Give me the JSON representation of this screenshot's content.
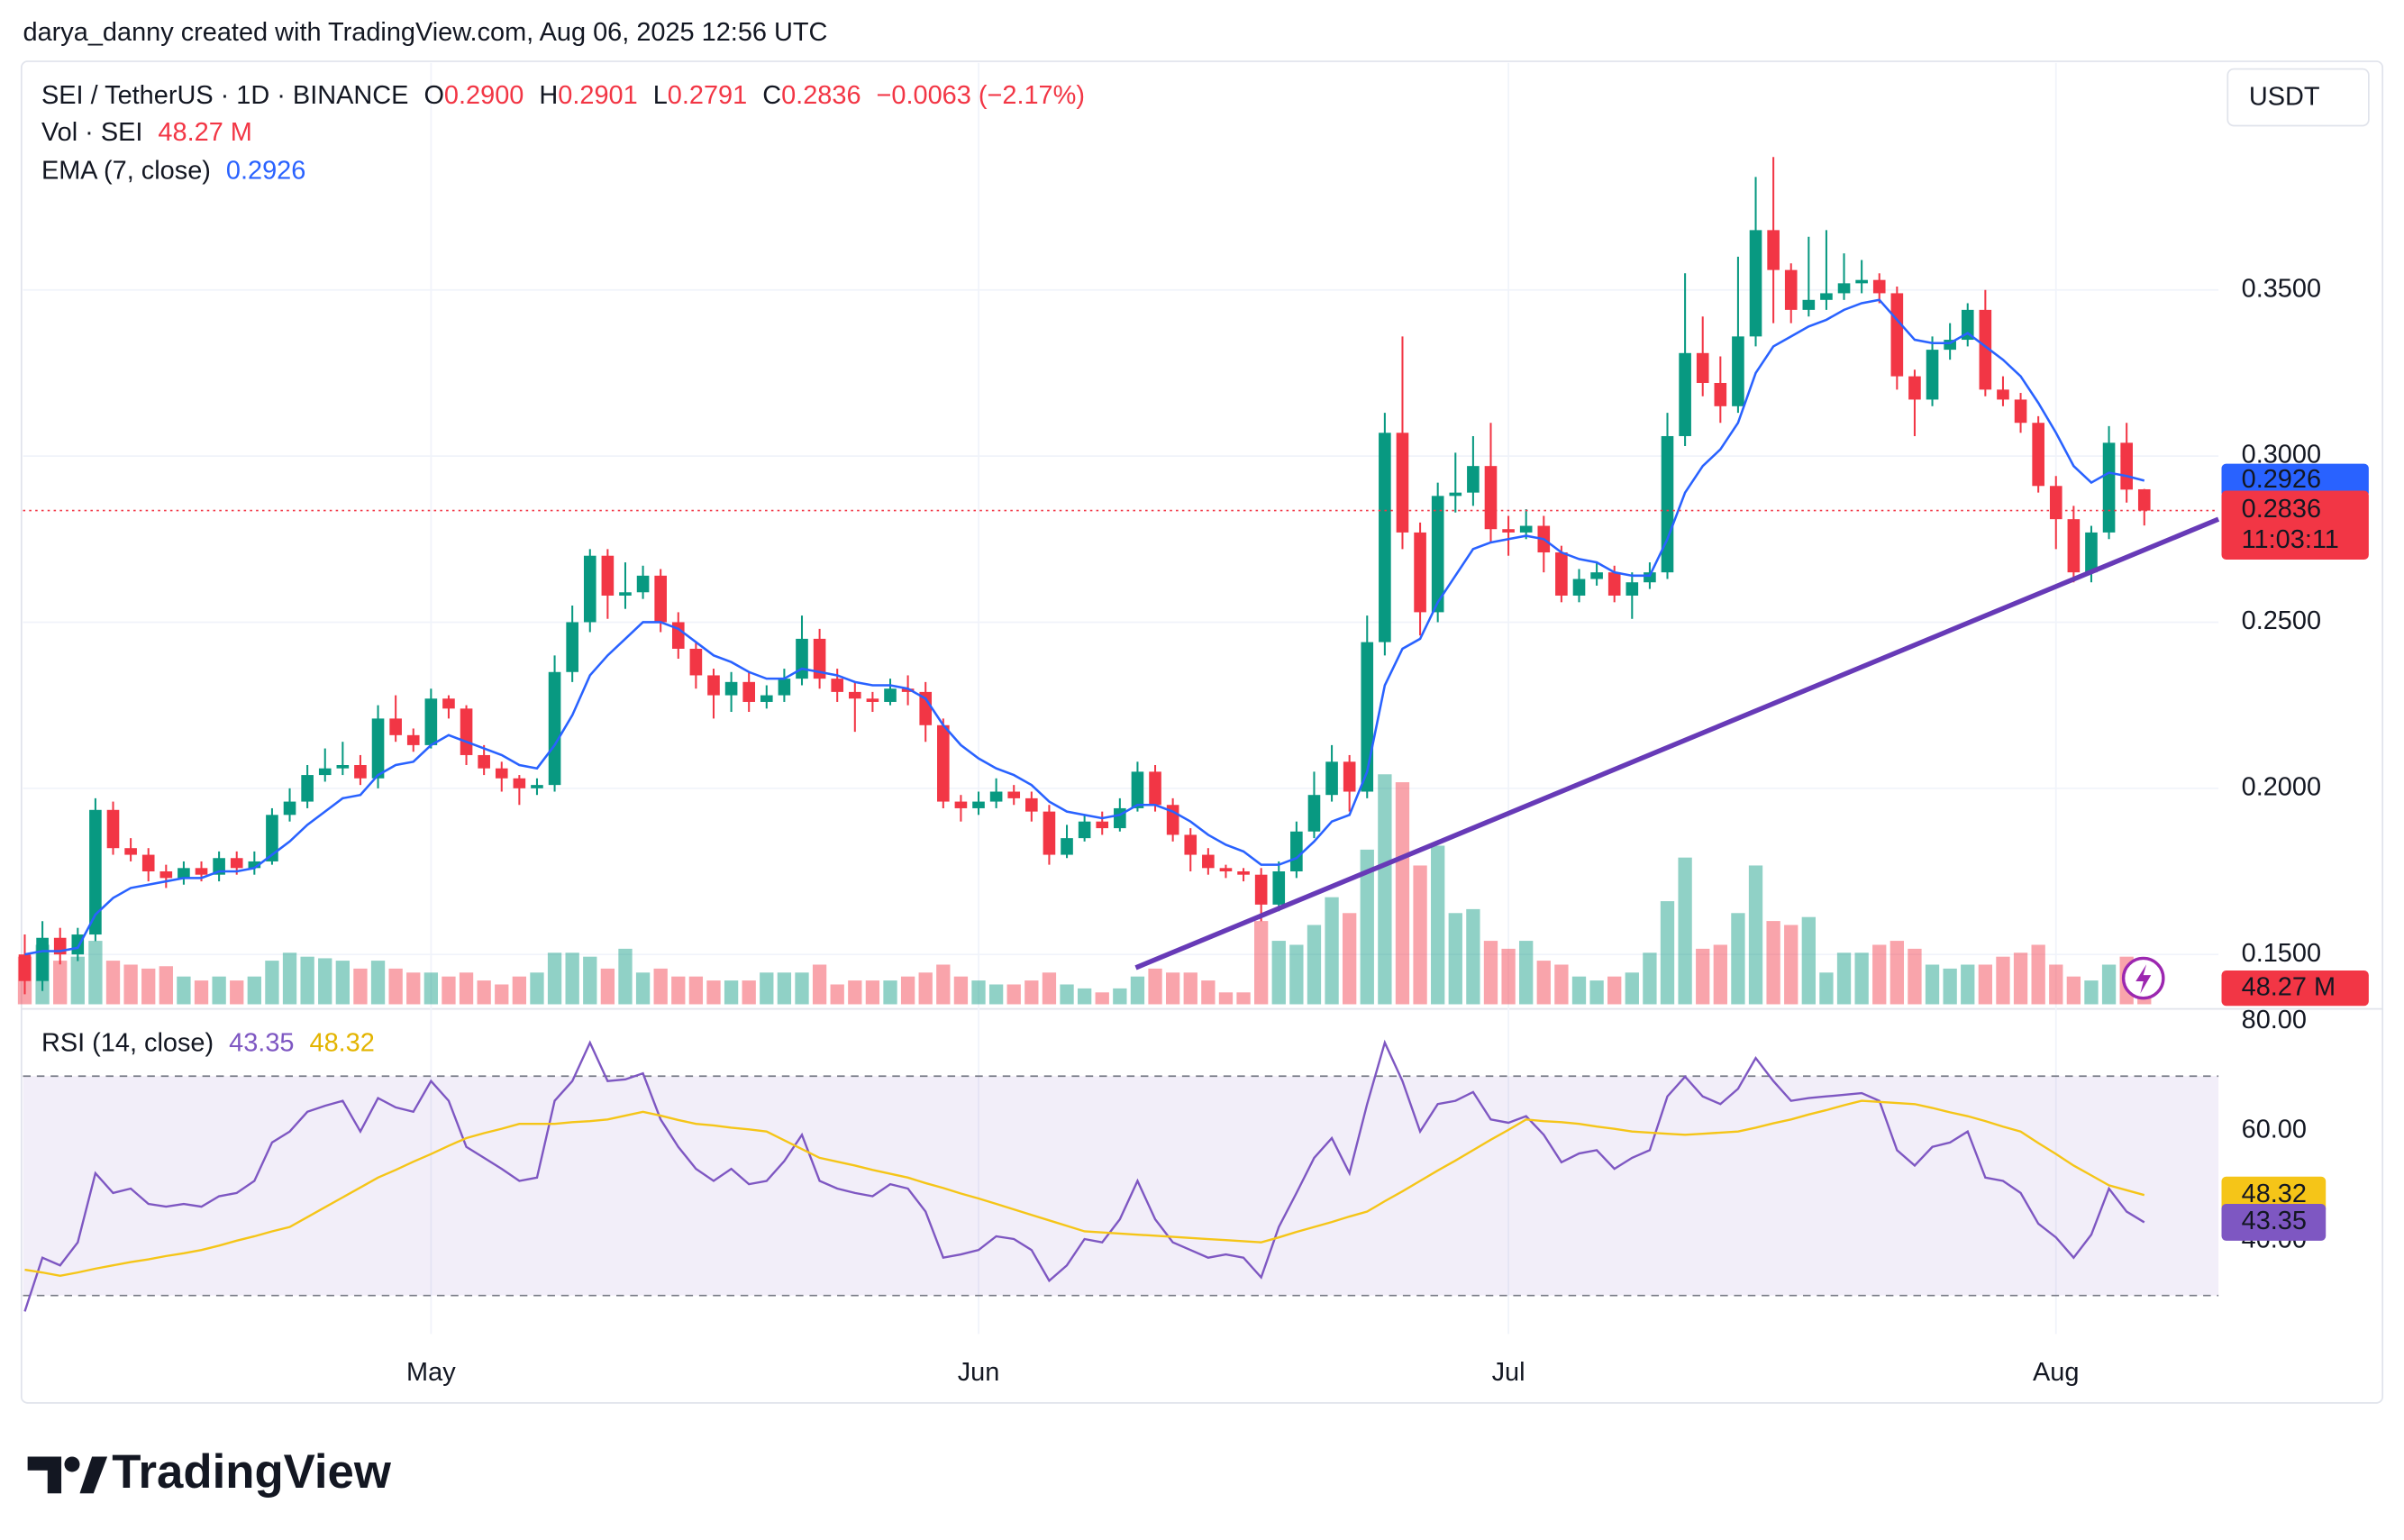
{
  "header": {
    "attribution": "darya_danny created with TradingView.com, Aug 06, 2025 12:56 UTC",
    "logo": "TradingView"
  },
  "chart_data": [
    {
      "type": "candlestick",
      "title": "SEI / TetherUS · 1D · BINANCE",
      "currency": "USDT",
      "ohlc_names": [
        "O",
        "H",
        "L",
        "C"
      ],
      "last_ohlc_labels": [
        "0.2900",
        "0.2901",
        "0.2791",
        "0.2836"
      ],
      "change_label": "−0.0063 (−2.17%)",
      "countdown": "11:03:11",
      "up_color": "#089981",
      "down_color": "#f23645",
      "grid": true,
      "xlim": [
        -0.1,
        124.2
      ],
      "xticks": [
        {
          "value": 23,
          "label": "May"
        },
        {
          "value": 54,
          "label": "Jun"
        },
        {
          "value": 84,
          "label": "Jul"
        },
        {
          "value": 115,
          "label": "Aug"
        }
      ],
      "ylim": [
        0.135,
        0.4188
      ],
      "yticks": [
        {
          "value": 0.15,
          "label": "0.1500"
        },
        {
          "value": 0.2,
          "label": "0.2000"
        },
        {
          "value": 0.25,
          "label": "0.2500"
        },
        {
          "value": 0.3,
          "label": "0.3000"
        },
        {
          "value": 0.35,
          "label": "0.3500"
        }
      ],
      "open": [
        0.15,
        0.142,
        0.155,
        0.15,
        0.156,
        0.1935,
        0.182,
        0.18,
        0.175,
        0.173,
        0.176,
        0.174,
        0.179,
        0.176,
        0.178,
        0.192,
        0.196,
        0.204,
        0.206,
        0.207,
        0.203,
        0.221,
        0.216,
        0.213,
        0.227,
        0.224,
        0.21,
        0.206,
        0.203,
        0.2,
        0.201,
        0.235,
        0.25,
        0.27,
        0.258,
        0.259,
        0.264,
        0.25,
        0.242,
        0.234,
        0.228,
        0.232,
        0.226,
        0.228,
        0.233,
        0.245,
        0.233,
        0.229,
        0.227,
        0.226,
        0.23,
        0.229,
        0.219,
        0.196,
        0.194,
        0.196,
        0.199,
        0.197,
        0.193,
        0.18,
        0.185,
        0.19,
        0.188,
        0.194,
        0.205,
        0.195,
        0.186,
        0.18,
        0.176,
        0.175,
        0.174,
        0.165,
        0.175,
        0.187,
        0.198,
        0.208,
        0.199,
        0.244,
        0.307,
        0.277,
        0.253,
        0.288,
        0.289,
        0.297,
        0.278,
        0.277,
        0.279,
        0.271,
        0.258,
        0.263,
        0.265,
        0.258,
        0.262,
        0.265,
        0.306,
        0.331,
        0.322,
        0.315,
        0.336,
        0.368,
        0.356,
        0.344,
        0.347,
        0.349,
        0.352,
        0.353,
        0.349,
        0.324,
        0.317,
        0.332,
        0.335,
        0.344,
        0.32,
        0.317,
        0.31,
        0.291,
        0.281,
        0.265,
        0.277,
        0.304,
        0.29
      ],
      "high": [
        0.156,
        0.16,
        0.158,
        0.158,
        0.197,
        0.196,
        0.185,
        0.182,
        0.177,
        0.178,
        0.178,
        0.181,
        0.181,
        0.181,
        0.194,
        0.2,
        0.207,
        0.212,
        0.214,
        0.21,
        0.225,
        0.228,
        0.218,
        0.23,
        0.228,
        0.225,
        0.213,
        0.208,
        0.204,
        0.203,
        0.24,
        0.255,
        0.272,
        0.272,
        0.268,
        0.267,
        0.266,
        0.253,
        0.244,
        0.236,
        0.235,
        0.235,
        0.231,
        0.236,
        0.252,
        0.248,
        0.236,
        0.232,
        0.229,
        0.233,
        0.234,
        0.232,
        0.221,
        0.198,
        0.199,
        0.203,
        0.201,
        0.199,
        0.195,
        0.189,
        0.192,
        0.193,
        0.197,
        0.208,
        0.207,
        0.197,
        0.188,
        0.182,
        0.177,
        0.176,
        0.176,
        0.178,
        0.19,
        0.205,
        0.213,
        0.21,
        0.252,
        0.313,
        0.336,
        0.28,
        0.292,
        0.301,
        0.306,
        0.31,
        0.282,
        0.284,
        0.282,
        0.273,
        0.266,
        0.268,
        0.267,
        0.265,
        0.268,
        0.313,
        0.355,
        0.342,
        0.33,
        0.36,
        0.384,
        0.39,
        0.358,
        0.366,
        0.368,
        0.361,
        0.359,
        0.355,
        0.351,
        0.326,
        0.336,
        0.34,
        0.346,
        0.35,
        0.324,
        0.319,
        0.312,
        0.294,
        0.285,
        0.279,
        0.309,
        0.31,
        0.2901
      ],
      "low": [
        0.138,
        0.139,
        0.147,
        0.148,
        0.154,
        0.18,
        0.178,
        0.172,
        0.17,
        0.171,
        0.172,
        0.172,
        0.174,
        0.174,
        0.177,
        0.19,
        0.194,
        0.202,
        0.204,
        0.201,
        0.2,
        0.214,
        0.211,
        0.212,
        0.221,
        0.207,
        0.204,
        0.199,
        0.195,
        0.198,
        0.199,
        0.232,
        0.247,
        0.251,
        0.254,
        0.257,
        0.247,
        0.239,
        0.23,
        0.221,
        0.223,
        0.223,
        0.224,
        0.226,
        0.231,
        0.23,
        0.226,
        0.217,
        0.223,
        0.225,
        0.225,
        0.214,
        0.194,
        0.19,
        0.192,
        0.194,
        0.195,
        0.19,
        0.177,
        0.179,
        0.184,
        0.186,
        0.187,
        0.193,
        0.193,
        0.184,
        0.175,
        0.174,
        0.173,
        0.172,
        0.16,
        0.163,
        0.173,
        0.185,
        0.196,
        0.193,
        0.197,
        0.24,
        0.272,
        0.246,
        0.25,
        0.283,
        0.285,
        0.274,
        0.27,
        0.275,
        0.265,
        0.256,
        0.256,
        0.261,
        0.256,
        0.251,
        0.26,
        0.263,
        0.303,
        0.318,
        0.31,
        0.313,
        0.333,
        0.34,
        0.34,
        0.342,
        0.344,
        0.347,
        0.349,
        0.346,
        0.32,
        0.306,
        0.315,
        0.329,
        0.333,
        0.318,
        0.315,
        0.307,
        0.289,
        0.272,
        0.262,
        0.262,
        0.275,
        0.286,
        0.2791
      ],
      "close": [
        0.142,
        0.155,
        0.15,
        0.156,
        0.1935,
        0.182,
        0.18,
        0.175,
        0.173,
        0.176,
        0.174,
        0.179,
        0.176,
        0.178,
        0.192,
        0.196,
        0.204,
        0.206,
        0.207,
        0.203,
        0.221,
        0.216,
        0.213,
        0.227,
        0.224,
        0.21,
        0.206,
        0.203,
        0.2,
        0.201,
        0.235,
        0.25,
        0.27,
        0.258,
        0.259,
        0.264,
        0.25,
        0.242,
        0.234,
        0.228,
        0.232,
        0.226,
        0.228,
        0.233,
        0.245,
        0.233,
        0.229,
        0.227,
        0.226,
        0.23,
        0.229,
        0.219,
        0.196,
        0.194,
        0.196,
        0.199,
        0.197,
        0.193,
        0.18,
        0.185,
        0.19,
        0.188,
        0.194,
        0.205,
        0.195,
        0.186,
        0.18,
        0.176,
        0.175,
        0.174,
        0.165,
        0.175,
        0.187,
        0.198,
        0.208,
        0.199,
        0.244,
        0.307,
        0.277,
        0.253,
        0.288,
        0.289,
        0.297,
        0.278,
        0.277,
        0.279,
        0.271,
        0.258,
        0.263,
        0.265,
        0.258,
        0.262,
        0.265,
        0.306,
        0.331,
        0.322,
        0.315,
        0.336,
        0.368,
        0.356,
        0.344,
        0.347,
        0.349,
        0.352,
        0.353,
        0.349,
        0.324,
        0.317,
        0.332,
        0.335,
        0.344,
        0.32,
        0.317,
        0.31,
        0.291,
        0.281,
        0.265,
        0.277,
        0.304,
        0.2899,
        0.2836
      ],
      "overlays": [
        {
          "type": "line",
          "name": "EMA (7, close)",
          "color": "#2962ff",
          "values": [
            0.15,
            0.151,
            0.151,
            0.152,
            0.162,
            0.167,
            0.17,
            0.171,
            0.172,
            0.173,
            0.173,
            0.175,
            0.175,
            0.176,
            0.18,
            0.184,
            0.189,
            0.193,
            0.197,
            0.198,
            0.204,
            0.207,
            0.208,
            0.213,
            0.216,
            0.214,
            0.212,
            0.21,
            0.207,
            0.206,
            0.213,
            0.222,
            0.234,
            0.24,
            0.245,
            0.25,
            0.25,
            0.248,
            0.244,
            0.24,
            0.238,
            0.235,
            0.233,
            0.233,
            0.236,
            0.235,
            0.234,
            0.232,
            0.231,
            0.231,
            0.23,
            0.227,
            0.219,
            0.213,
            0.209,
            0.206,
            0.204,
            0.201,
            0.196,
            0.193,
            0.192,
            0.191,
            0.192,
            0.195,
            0.195,
            0.193,
            0.19,
            0.186,
            0.183,
            0.181,
            0.177,
            0.177,
            0.179,
            0.184,
            0.19,
            0.192,
            0.205,
            0.231,
            0.242,
            0.245,
            0.256,
            0.264,
            0.272,
            0.274,
            0.275,
            0.276,
            0.275,
            0.271,
            0.269,
            0.268,
            0.265,
            0.264,
            0.264,
            0.275,
            0.289,
            0.297,
            0.302,
            0.31,
            0.325,
            0.333,
            0.336,
            0.339,
            0.341,
            0.344,
            0.346,
            0.347,
            0.341,
            0.335,
            0.334,
            0.334,
            0.337,
            0.333,
            0.329,
            0.324,
            0.316,
            0.307,
            0.297,
            0.292,
            0.295,
            0.294,
            0.2926
          ]
        }
      ],
      "trendline": {
        "color": "#673ab7",
        "x": [
          62.9,
          124.2
        ],
        "values": [
          0.146,
          0.281
        ]
      },
      "volume": {
        "name": "Vol · SEI",
        "last_label": "48.27 M",
        "values": [
          60,
          75,
          55,
          60,
          80,
          55,
          50,
          45,
          48,
          35,
          30,
          35,
          30,
          35,
          55,
          65,
          60,
          58,
          55,
          45,
          55,
          45,
          40,
          40,
          35,
          40,
          30,
          25,
          35,
          40,
          65,
          65,
          60,
          45,
          70,
          40,
          45,
          35,
          35,
          30,
          30,
          30,
          40,
          40,
          40,
          50,
          25,
          30,
          30,
          30,
          35,
          40,
          50,
          35,
          30,
          25,
          25,
          30,
          40,
          25,
          20,
          15,
          20,
          35,
          45,
          40,
          40,
          30,
          15,
          15,
          105,
          80,
          75,
          100,
          135,
          115,
          195,
          290,
          280,
          175,
          200,
          115,
          120,
          80,
          70,
          80,
          55,
          50,
          35,
          30,
          35,
          40,
          65,
          130,
          185,
          70,
          75,
          115,
          175,
          105,
          100,
          110,
          40,
          65,
          65,
          75,
          80,
          70,
          50,
          45,
          50,
          50,
          60,
          65,
          75,
          50,
          35,
          30,
          50,
          60,
          48.27
        ]
      }
    },
    {
      "type": "line",
      "title": "RSI (14, close)",
      "bands": [
        30,
        70
      ],
      "band_color": "#7e57c2",
      "ylim": [
        23,
        81.7
      ],
      "yticks": [
        {
          "value": 40,
          "label": "40.00"
        },
        {
          "value": 60,
          "label": "60.00"
        },
        {
          "value": 80,
          "label": "80.00"
        }
      ],
      "series": [
        {
          "color": "#7e57c2",
          "values": [
            27.1,
            36.9,
            35.5,
            39.7,
            52.3,
            48.7,
            49.5,
            46.7,
            46.2,
            46.7,
            46.2,
            48.1,
            48.7,
            50.9,
            57.9,
            59.9,
            63.5,
            64.6,
            65.5,
            59.9,
            66,
            64.3,
            63.5,
            69.1,
            65.5,
            57.1,
            55.1,
            53.1,
            50.9,
            51.5,
            65.5,
            69.1,
            76.1,
            69.1,
            69.4,
            70.5,
            62.1,
            57.1,
            53.1,
            50.9,
            53.1,
            50.3,
            50.9,
            54.5,
            59.3,
            50.9,
            49.5,
            48.7,
            48.1,
            50.3,
            49.5,
            45.3,
            36.9,
            37.5,
            38.3,
            40.8,
            40.3,
            38.3,
            32.7,
            35.5,
            40.3,
            39.7,
            43.9,
            50.9,
            43.9,
            39.7,
            38.3,
            36.9,
            37.5,
            36.9,
            33.3,
            42.5,
            48.7,
            55.1,
            58.7,
            52.3,
            64.9,
            76.1,
            69.1,
            59.9,
            64.9,
            65.5,
            67.1,
            62.1,
            61.5,
            62.7,
            59.3,
            54.3,
            55.9,
            56.5,
            53.1,
            55.1,
            56.5,
            66.3,
            69.9,
            66.3,
            64.9,
            67.7,
            73.3,
            69.1,
            65.5,
            66,
            66.3,
            66.6,
            66.9,
            65.5,
            56.5,
            53.7,
            57.1,
            57.9,
            59.9,
            51.5,
            50.9,
            48.7,
            43.1,
            40.6,
            36.9,
            41.1,
            49.5,
            45.3,
            43.35
          ]
        },
        {
          "color": "#f5c518",
          "values": [
            34.7,
            34.2,
            33.6,
            34.2,
            34.9,
            35.5,
            36.1,
            36.6,
            37.2,
            37.7,
            38.3,
            39.1,
            40,
            40.8,
            41.7,
            42.5,
            44.3,
            46.1,
            47.9,
            49.7,
            51.5,
            52.9,
            54.4,
            55.8,
            57.3,
            58.7,
            59.6,
            60.4,
            61.3,
            61.3,
            61.3,
            61.6,
            61.8,
            62.1,
            62.8,
            63.5,
            62.8,
            62,
            61.3,
            61,
            60.6,
            60.3,
            59.9,
            58.3,
            56.7,
            55.1,
            54.4,
            53.7,
            52.9,
            52.2,
            51.5,
            50.5,
            49.6,
            48.6,
            47.7,
            46.7,
            45.7,
            44.7,
            43.7,
            42.7,
            41.7,
            41.5,
            41.3,
            41.1,
            40.9,
            40.7,
            40.5,
            40.3,
            40.1,
            39.9,
            39.7,
            40.6,
            41.6,
            42.5,
            43.4,
            44.4,
            45.3,
            47.2,
            49,
            50.9,
            52.8,
            54.6,
            56.5,
            58.4,
            60.2,
            62.1,
            61.8,
            61.6,
            61.3,
            60.8,
            60.4,
            59.9,
            59.7,
            59.5,
            59.3,
            59.5,
            59.7,
            59.9,
            60.6,
            61.4,
            62.1,
            63,
            63.8,
            64.7,
            65.5,
            65.3,
            65.1,
            64.9,
            64.2,
            63.4,
            62.7,
            61.8,
            60.8,
            59.9,
            57.8,
            55.8,
            53.7,
            51.9,
            50.1,
            49.2,
            48.32
          ]
        }
      ]
    }
  ]
}
